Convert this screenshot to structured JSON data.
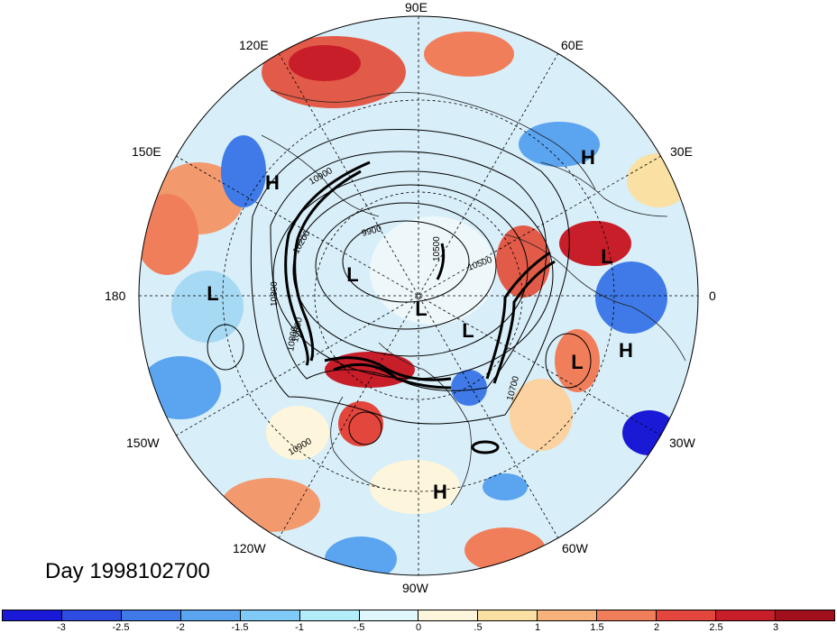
{
  "title": "",
  "date_label": "Day 1998102700",
  "longitude_labels": {
    "e90": "90E",
    "e120": "120E",
    "e60": "60E",
    "e150": "150E",
    "e30": "30E",
    "d180": "180",
    "zero": "0",
    "w150": "150W",
    "w30": "30W",
    "w120": "120W",
    "w60": "60W",
    "w90": "90W"
  },
  "contour_labels": [
    "10900",
    "9900",
    "10200",
    "10500",
    "10800",
    "10700",
    "10800",
    "10900",
    "10800",
    "10500"
  ],
  "pressure_centers": [
    {
      "type": "H",
      "label": "H"
    },
    {
      "type": "H",
      "label": "H"
    },
    {
      "type": "H",
      "label": "H"
    },
    {
      "type": "H",
      "label": "H"
    },
    {
      "type": "L",
      "label": "L"
    },
    {
      "type": "L",
      "label": "L"
    },
    {
      "type": "L",
      "label": "L"
    },
    {
      "type": "L",
      "label": "L"
    },
    {
      "type": "L",
      "label": "L"
    },
    {
      "type": "L",
      "label": "L"
    }
  ],
  "colorbar": {
    "colors": [
      "#1a1ad6",
      "#2e4ce0",
      "#3f7ae8",
      "#5aa4f0",
      "#7fcaf7",
      "#b4edfa",
      "#e0f8fb",
      "#fdf6dc",
      "#fbe0a4",
      "#f7b27c",
      "#f07e5a",
      "#e2463c",
      "#c81e2a",
      "#a0101c"
    ],
    "tick_labels": [
      "-3",
      "-2.5",
      "-2",
      "-1.5",
      "-1",
      "-.5",
      "0",
      ".5",
      "1",
      "1.5",
      "2",
      "2.5",
      "3"
    ]
  }
}
